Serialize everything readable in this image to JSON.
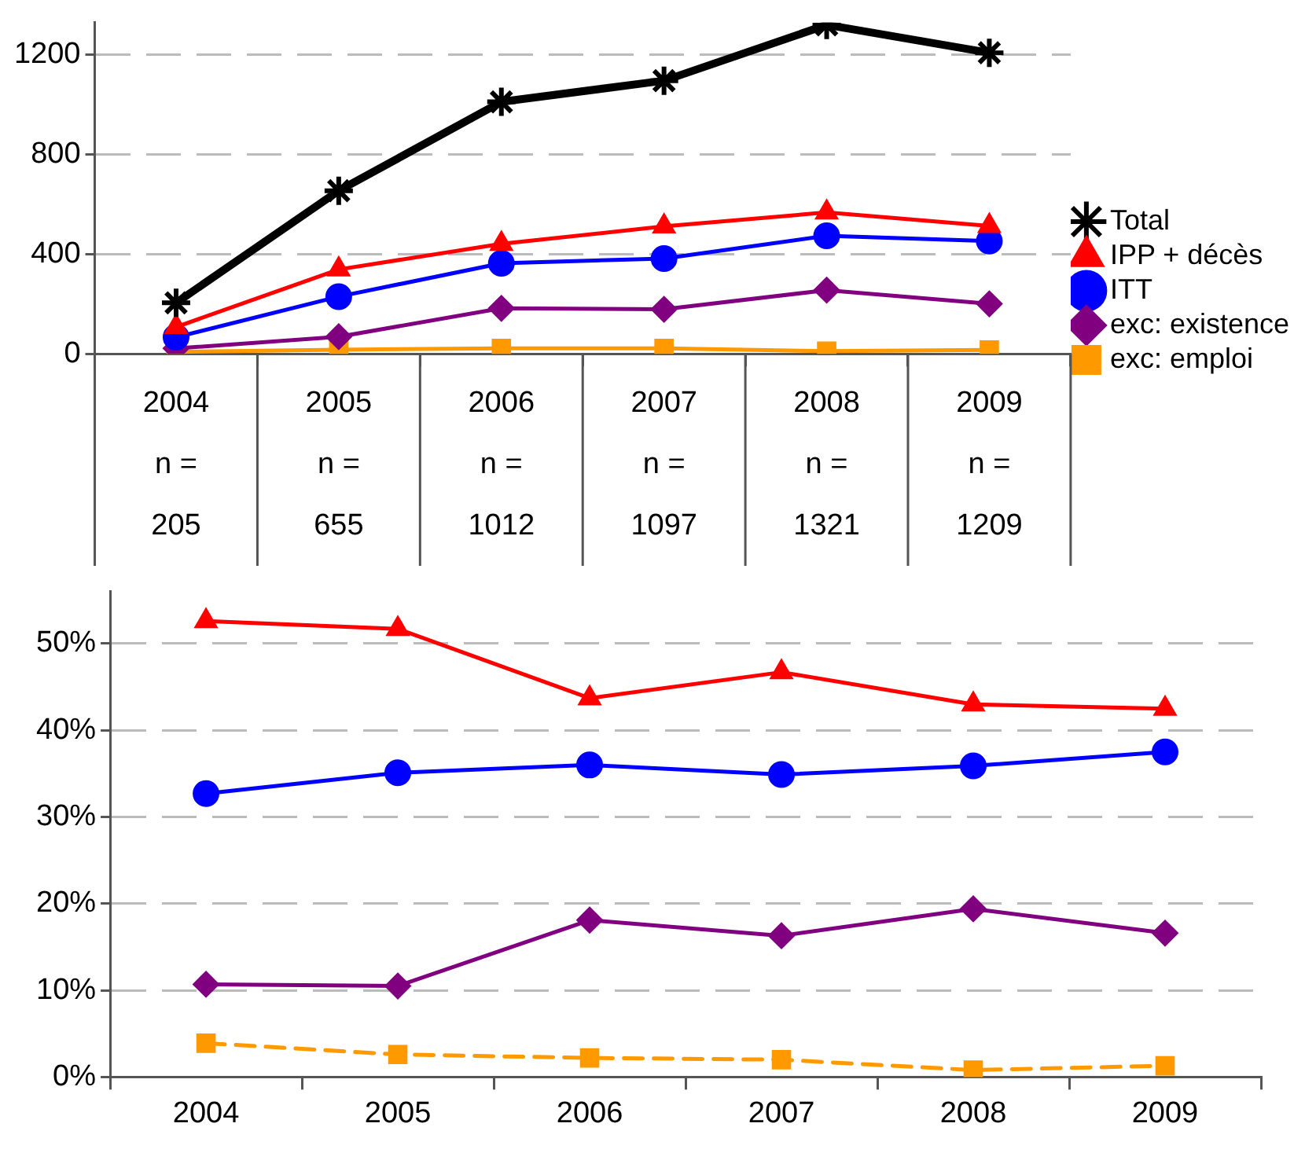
{
  "chart_data": [
    {
      "type": "line",
      "categories": [
        "2004\nn =\n205",
        "2005\nn =\n655",
        "2006\nn =\n1012",
        "2007\nn =\n1097",
        "2008\nn =\n1321",
        "2009\nn =\n1209"
      ],
      "series": [
        {
          "name": "Total",
          "color": "#000000",
          "marker": "cross",
          "values": [
            205,
            655,
            1012,
            1097,
            1321,
            1209
          ]
        },
        {
          "name": "IPP + décès",
          "color": "#ff0000",
          "marker": "triangle",
          "values": [
            108,
            339,
            442,
            512,
            568,
            514
          ]
        },
        {
          "name": "ITT",
          "color": "#0000ff",
          "marker": "circle",
          "values": [
            67,
            230,
            364,
            383,
            474,
            453
          ]
        },
        {
          "name": "exc: existence",
          "color": "#800080",
          "marker": "diamond",
          "values": [
            22,
            69,
            183,
            179,
            256,
            201
          ]
        },
        {
          "name": "exc: emploi",
          "color": "#ff9900",
          "marker": "square",
          "values": [
            8,
            17,
            22,
            22,
            11,
            16
          ]
        }
      ],
      "ylim": [
        0,
        1330
      ],
      "yticks": [
        0,
        400,
        800,
        1200
      ],
      "grid": "y",
      "legend": "right",
      "line_style": "solid"
    },
    {
      "type": "line",
      "categories": [
        "2004",
        "2005",
        "2006",
        "2007",
        "2008",
        "2009"
      ],
      "series": [
        {
          "color": "#ff0000",
          "marker": "triangle",
          "values": [
            52.6,
            51.7,
            43.7,
            46.7,
            43.0,
            42.5
          ]
        },
        {
          "color": "#0000ff",
          "marker": "circle",
          "values": [
            32.7,
            35.1,
            36.0,
            34.9,
            35.9,
            37.5
          ]
        },
        {
          "color": "#800080",
          "marker": "diamond",
          "values": [
            10.7,
            10.5,
            18.1,
            16.3,
            19.4,
            16.6
          ]
        },
        {
          "color": "#ff9900",
          "marker": "square",
          "values": [
            3.9,
            2.6,
            2.2,
            2.0,
            0.8,
            1.3
          ],
          "line_style": "dashed"
        }
      ],
      "ylim": [
        0,
        56
      ],
      "yticks": [
        {
          "value": 0,
          "label": "0%"
        },
        {
          "value": 10,
          "label": "10%"
        },
        {
          "value": 20,
          "label": "20%"
        },
        {
          "value": 30,
          "label": "30%"
        },
        {
          "value": 40,
          "label": "40%"
        },
        {
          "value": 50,
          "label": "50%"
        }
      ],
      "grid": "y",
      "legend": false,
      "line_style": "solid"
    }
  ]
}
